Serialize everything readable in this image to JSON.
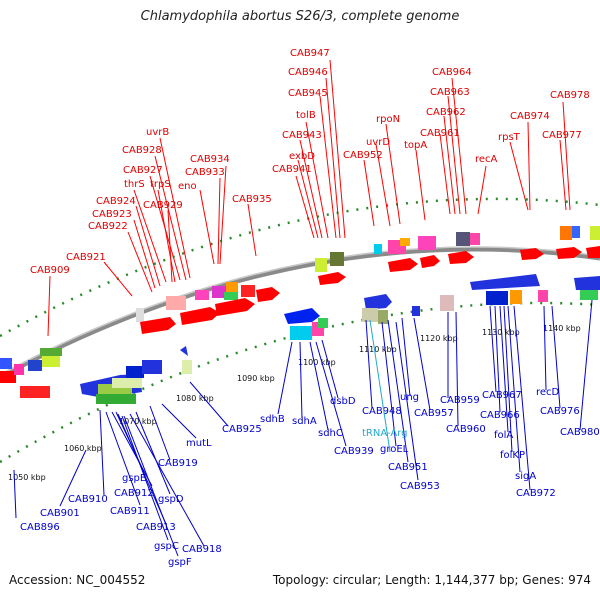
{
  "title": "Chlamydophila abortus S26/3, complete genome",
  "footer": {
    "accession": "Accession: NC_004552",
    "stats": "Topology: circular; Length: 1,144,377 bp; Genes: 974"
  },
  "colors": {
    "forward_label": "#dd0000",
    "reverse_label": "#0000cc",
    "trna_label": "#22aacc",
    "backbone": "#8a8a8a",
    "tick_major": "#1a8a1a"
  },
  "scale_labels": [
    "1050 kbp",
    "1060 kbp",
    "1070 kbp",
    "1080 kbp",
    "1090 kbp",
    "1100 kbp",
    "1110 kbp",
    "1120 kbp",
    "1130 kbp",
    "1140 kbp"
  ],
  "forward_labels": [
    "CAB947",
    "CAB946",
    "CAB945",
    "tolB",
    "CAB943",
    "exbD",
    "CAB941",
    "CAB964",
    "CAB963",
    "CAB962",
    "CAB961",
    "topA",
    "rpoN",
    "uvrD",
    "CAB952",
    "CAB978",
    "CAB977",
    "CAB974",
    "rpsT",
    "recA",
    "uvrB",
    "CAB928",
    "CAB927",
    "thrS",
    "trpS",
    "CAB934",
    "CAB933",
    "eno",
    "CAB935",
    "CAB924",
    "CAB923",
    "CAB922",
    "CAB929",
    "CAB921",
    "CAB909"
  ],
  "reverse_labels": [
    "CAB896",
    "1050 kbp",
    "CAB901",
    "CAB910",
    "CAB911",
    "CAB912",
    "gspE",
    "CAB913",
    "gspC",
    "gspF",
    "CAB918",
    "gspD",
    "CAB919",
    "mutL",
    "CAB925",
    "sdhB",
    "sdhA",
    "sdhC",
    "CAB939",
    "dsbD",
    "CAB948",
    "groEL",
    "CAB951",
    "CAB953",
    "ung",
    "CAB957",
    "CAB959",
    "CAB960",
    "CAB967",
    "CAB966",
    "folA",
    "folKP",
    "sigA",
    "CAB972",
    "recD",
    "CAB976",
    "CAB980"
  ],
  "trna_labels": [
    "tRNA-Arg"
  ]
}
